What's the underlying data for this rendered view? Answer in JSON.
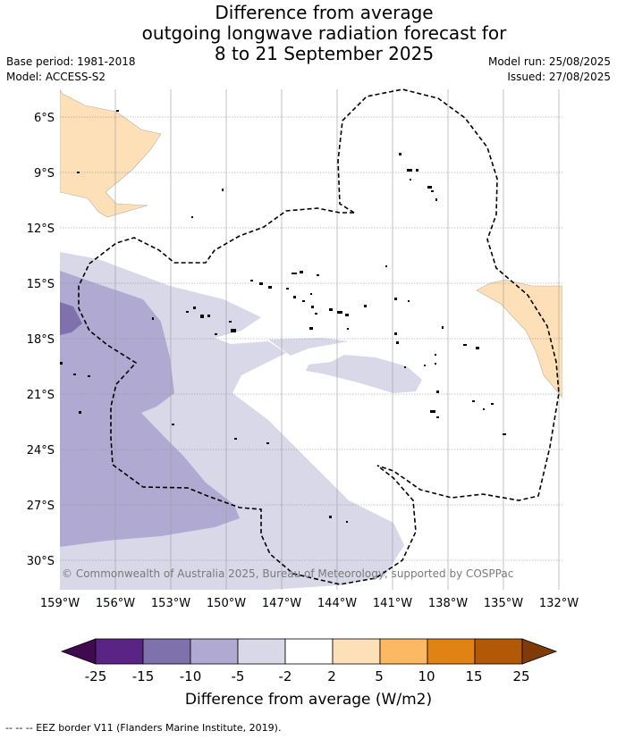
{
  "header": {
    "title_lines": [
      "Difference from average",
      "outgoing longwave radiation forecast for",
      "8 to 21 September 2025"
    ],
    "base_period": "Base period: 1981-2018",
    "model": "Model: ACCESS-S2",
    "model_run": "Model run: 25/08/2025",
    "issued": "Issued: 27/08/2025"
  },
  "map": {
    "lat_labels": [
      "6°S",
      "9°S",
      "12°S",
      "15°S",
      "18°S",
      "21°S",
      "24°S",
      "27°S",
      "30°S"
    ],
    "lon_labels": [
      "159°W",
      "156°W",
      "153°W",
      "150°W",
      "147°W",
      "144°W",
      "141°W",
      "138°W",
      "135°W",
      "132°W"
    ],
    "copyright": "© Commonwealth of Australia 2025, Bureau of Meteorology, supported by COSPPac"
  },
  "colorbar": {
    "ticks": [
      "-25",
      "-15",
      "-10",
      "-5",
      "-2",
      "2",
      "5",
      "10",
      "15",
      "25"
    ],
    "colors": [
      "#3f0a4f",
      "#5a2487",
      "#7f72ac",
      "#b0aad2",
      "#d8d8e9",
      "#ffffff",
      "#fde0b7",
      "#fdb863",
      "#e08214",
      "#b35806",
      "#7f3b08"
    ],
    "label": "Difference from average (W/m2)"
  },
  "footer": {
    "legend": "-- -- -- EEZ border V11 (Flanders Marine Institute, 2019)."
  }
}
